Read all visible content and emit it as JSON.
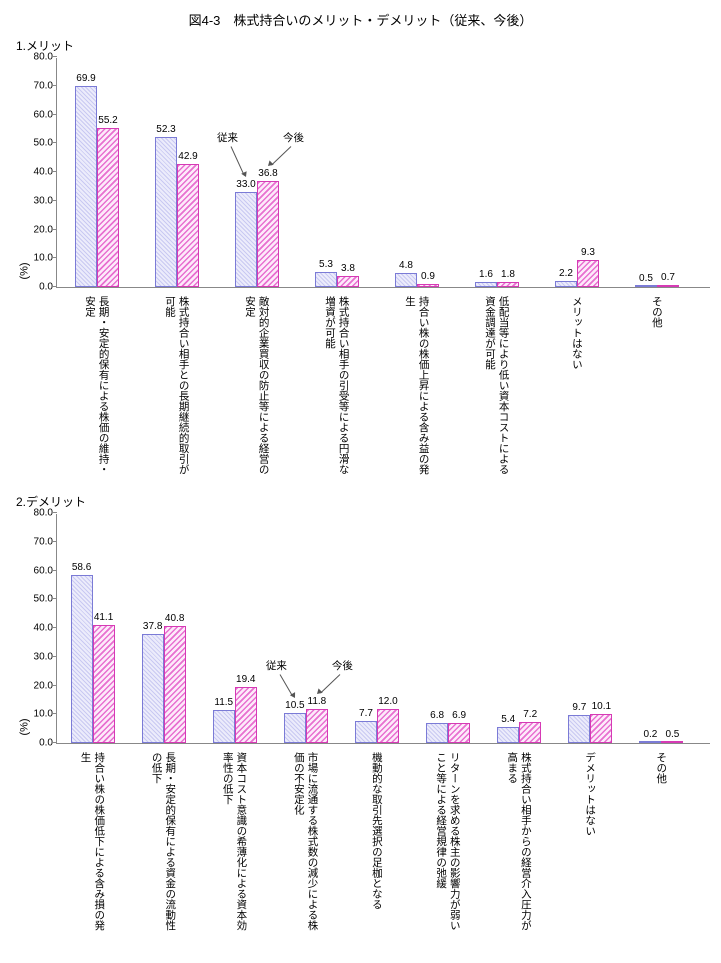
{
  "title": "図4-3　株式持合いのメリット・デメリット（従来、今後）",
  "ylabel": "(%)",
  "ymax": 80,
  "ytick_step": 10,
  "legend": {
    "a": "従来",
    "b": "今後"
  },
  "colors": {
    "bar_a_fill": "#dcdcf7",
    "bar_a_stroke": "#7b7bd6",
    "bar_b_fill": "#fbd7f3",
    "bar_b_stroke": "#d63ab5",
    "axis": "#888888",
    "text": "#000000",
    "background": "#ffffff"
  },
  "chart1": {
    "subtitle": "1.メリット",
    "categories": [
      "長期・安定的保有による株価の維持・安定",
      "株式持合い相手との長期継続的取引が可能",
      "敵対的企業買収の防止等による経営の安定",
      "株式持合い相手の引受等による円滑な増資が可能",
      "持合い株の株価上昇による含み益の発生",
      "低配当等により低い資本コストによる資金調達が可能",
      "メリットはない",
      "その他"
    ],
    "series_a": [
      69.9,
      52.3,
      33.0,
      5.3,
      4.8,
      1.6,
      2.2,
      0.5
    ],
    "series_b": [
      55.2,
      42.9,
      36.8,
      3.8,
      0.9,
      1.8,
      9.3,
      0.7
    ],
    "arrow_target": 2
  },
  "chart2": {
    "subtitle": "2.デメリット",
    "categories": [
      "持合い株の株価低下による含み損の発生",
      "長期・安定的保有による資金の流動性の低下",
      "資本コスト意識の希薄化による資本効率性の低下",
      "市場に流通する株式数の減少による株価の不安定化",
      "機動的な取引先選択の足枷となる",
      "リターンを求める株主の影響力が弱いこと等による経営規律の弛緩",
      "株式持合い相手からの経営介入圧力が高まる",
      "デメリットはない",
      "その他"
    ],
    "series_a": [
      58.6,
      37.8,
      11.5,
      10.5,
      7.7,
      6.8,
      5.4,
      9.7,
      0.2
    ],
    "series_b": [
      41.1,
      40.8,
      19.4,
      11.8,
      12.0,
      6.9,
      7.2,
      10.1,
      0.5
    ],
    "arrow_target": 3
  }
}
